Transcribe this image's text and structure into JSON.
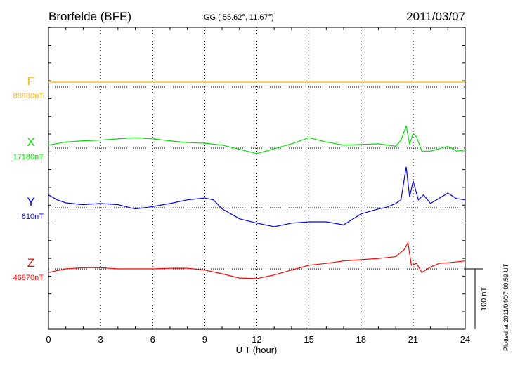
{
  "header": {
    "station": "Brorfelde (BFE)",
    "coords": "GG ( 55.62°,  11.67°)",
    "date": "2011/03/07"
  },
  "footer": {
    "plotted": "Plotted at 2011/04/07 00:59 UT"
  },
  "chart_data": {
    "type": "line",
    "title": "Brorfelde (BFE)",
    "xlabel": "U T (hour)",
    "xlim": [
      0,
      24
    ],
    "xticks": [
      "0",
      "3",
      "6",
      "9",
      "12",
      "15",
      "18",
      "21",
      "24"
    ],
    "scale_bar": "100 nT",
    "series": [
      {
        "name": "F",
        "baseline_label": "88880nT",
        "color": "#ffb400",
        "x": [
          0,
          24
        ],
        "values": [
          8,
          8
        ]
      },
      {
        "name": "X",
        "baseline_label": "17180nT",
        "color": "#00e000",
        "x": [
          0,
          1,
          2,
          3,
          4,
          5,
          6,
          7,
          8,
          9,
          10,
          11,
          12,
          13,
          14,
          15,
          16,
          17,
          18,
          19,
          20,
          20.3,
          20.6,
          20.8,
          21,
          21.2,
          21.5,
          22,
          23,
          23.5,
          24
        ],
        "values": [
          5,
          10,
          12,
          13,
          15,
          17,
          15,
          12,
          9,
          8,
          5,
          -2,
          -9,
          -1,
          7,
          17,
          10,
          5,
          6,
          7,
          3,
          13,
          36,
          7,
          24,
          18,
          -5,
          -5,
          3,
          -5,
          -3
        ]
      },
      {
        "name": "Y",
        "baseline_label": "610nT",
        "color": "#0000ff",
        "x": [
          0,
          0.5,
          1,
          2,
          3,
          4,
          5,
          6,
          7,
          8,
          9,
          9.5,
          10,
          11,
          12,
          13,
          14,
          15,
          16,
          17,
          18,
          19,
          19.5,
          20,
          20.3,
          20.6,
          20.8,
          21,
          21.3,
          21.6,
          22,
          23,
          23.5,
          24
        ],
        "values": [
          21,
          13,
          8,
          5,
          7,
          5,
          -2,
          2,
          7,
          13,
          16,
          13,
          -2,
          -18,
          -25,
          -31,
          -25,
          -23,
          -23,
          -28,
          -10,
          -2,
          1,
          7,
          13,
          67,
          18,
          44,
          13,
          21,
          7,
          24,
          15,
          13
        ]
      },
      {
        "name": "Z",
        "baseline_label": "46870nT",
        "color": "#ff0000",
        "x": [
          0,
          1,
          2,
          3,
          4,
          5,
          6,
          7,
          8,
          9,
          10,
          11,
          12,
          13,
          14,
          15,
          16,
          17,
          18,
          19,
          20,
          20.5,
          20.7,
          20.9,
          21.2,
          21.5,
          22,
          22.5,
          23,
          24
        ],
        "values": [
          -6,
          0,
          2,
          2,
          0,
          0,
          0,
          1,
          1,
          -2,
          -8,
          -15,
          -16,
          -10,
          -2,
          6,
          9,
          13,
          15,
          17,
          20,
          32,
          43,
          6,
          9,
          -6,
          3,
          9,
          10,
          13
        ]
      }
    ]
  }
}
